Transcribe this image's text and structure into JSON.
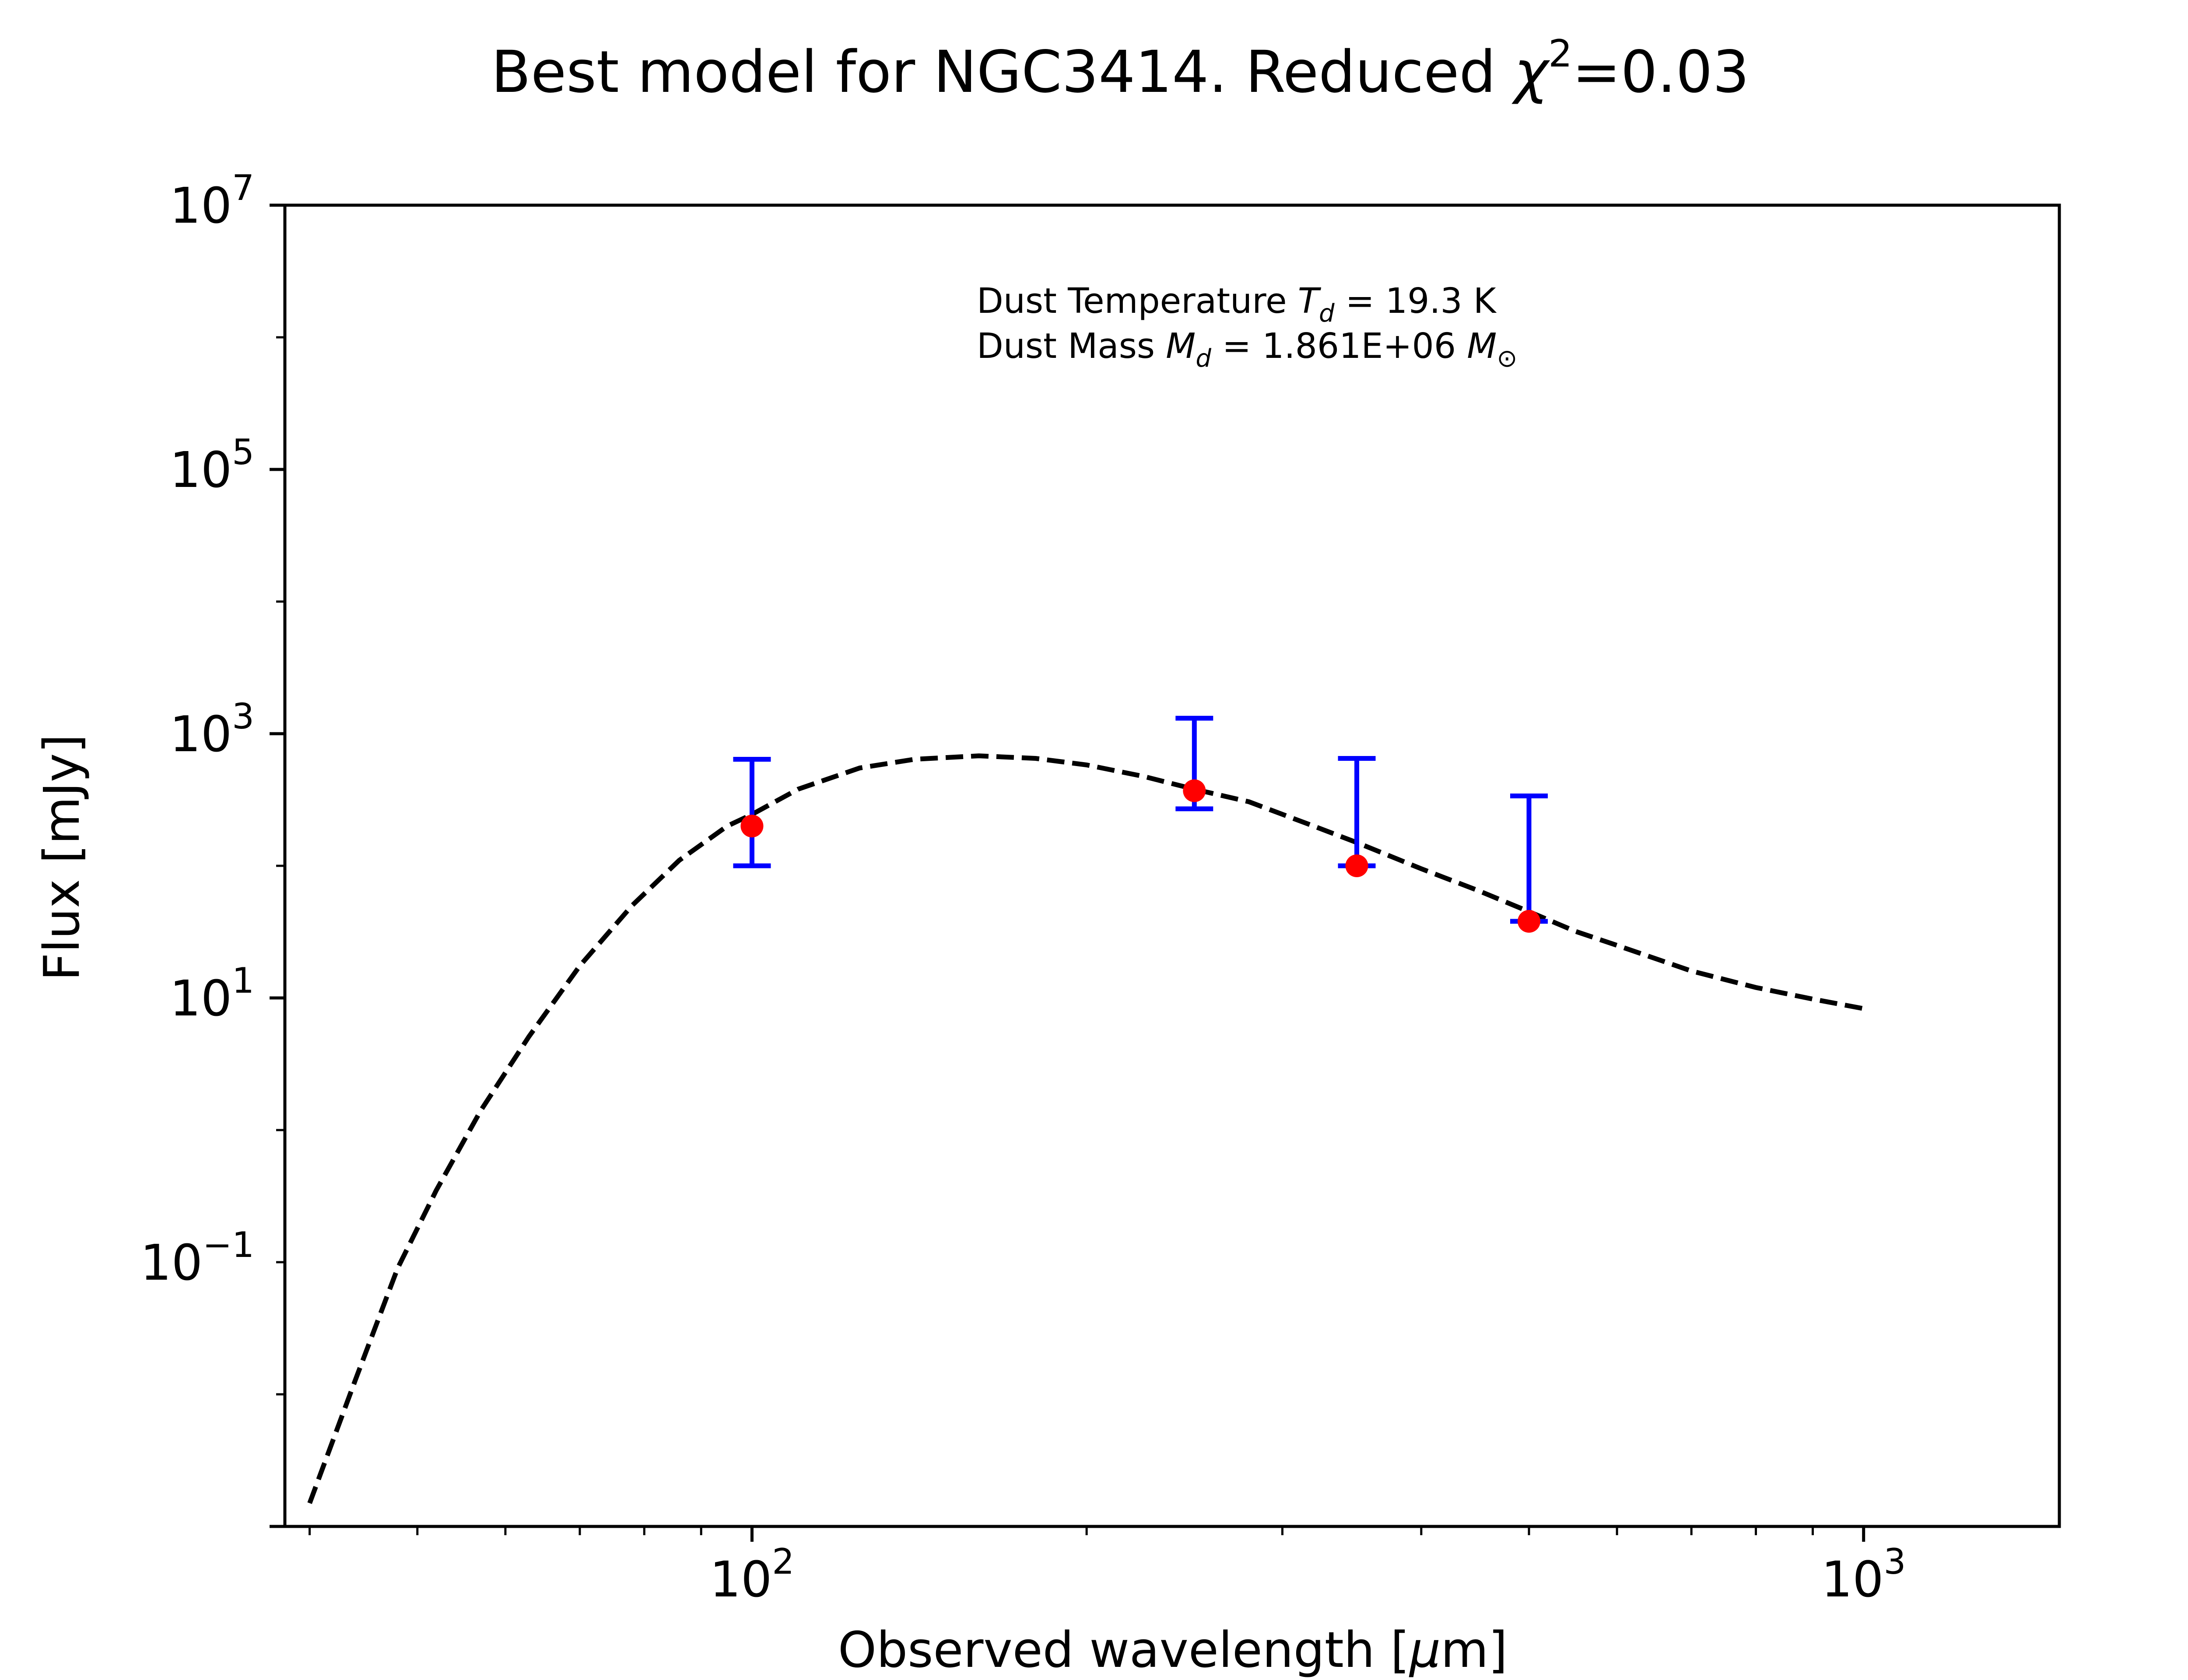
{
  "chart_data": {
    "type": "scatter",
    "title_prefix": "Best model for NGC3414. Reduced ",
    "title_chi": "χ",
    "title_sup": "2",
    "title_suffix": "=0.03",
    "xlabel_prefix": "Observed wavelength [",
    "xlabel_mu": "μ",
    "xlabel_suffix": "m]",
    "ylabel": "Flux [mJy]",
    "x_scale": "log",
    "y_scale": "log",
    "xlim": [
      38,
      1500
    ],
    "ylim": [
      0.001,
      10000000
    ],
    "x_ticks": [
      {
        "value": 100,
        "base": "10",
        "exp": "2"
      },
      {
        "value": 1000,
        "base": "10",
        "exp": "3"
      }
    ],
    "y_ticks": [
      {
        "value": 0.1,
        "base": "10",
        "exp": "−1"
      },
      {
        "value": 10,
        "base": "10",
        "exp": "1"
      },
      {
        "value": 1000,
        "base": "10",
        "exp": "3"
      },
      {
        "value": 100000,
        "base": "10",
        "exp": "5"
      },
      {
        "value": 10000000,
        "base": "10",
        "exp": "7"
      }
    ],
    "annotations": {
      "line1_prefix": "Dust Temperature ",
      "line1_var": "T",
      "line1_sub": "d",
      "line1_suffix": " = 19.3 K",
      "line2_prefix": "Dust Mass ",
      "line2_var": "M",
      "line2_sub": "d",
      "line2_value": " = 1.861E+06 ",
      "line2_unit": "M",
      "line2_unit_sub": "⊙"
    },
    "series": [
      {
        "type": "scatter",
        "color": "#ff0000",
        "errorbar_color": "#0000ff",
        "points": [
          {
            "x": 100,
            "y": 200,
            "yerr_low": 100,
            "yerr_high": 440
          },
          {
            "x": 250,
            "y": 370,
            "yerr_low": 100,
            "yerr_high": 940
          },
          {
            "x": 350,
            "y": 100,
            "yerr_low": 0.001,
            "yerr_high": 550
          },
          {
            "x": 500,
            "y": 38,
            "yerr_low": 0.001,
            "yerr_high": 300
          }
        ]
      },
      {
        "type": "line",
        "style": "dashed",
        "color": "#000000",
        "x": [
          40,
          44,
          48,
          52,
          57,
          63,
          70,
          78,
          86,
          95,
          100,
          110,
          125,
          140,
          160,
          180,
          200,
          225,
          250,
          280,
          320,
          350,
          400,
          450,
          500,
          550,
          600,
          700,
          800,
          900,
          1000
        ],
        "y": [
          0.0015,
          0.013,
          0.09,
          0.35,
          1.4,
          5.1,
          17.5,
          50,
          110,
          200,
          245,
          380,
          550,
          640,
          680,
          650,
          580,
          475,
          380,
          305,
          200,
          150,
          95,
          65,
          45,
          32,
          25,
          16,
          12,
          9.8,
          8.3
        ]
      }
    ]
  }
}
